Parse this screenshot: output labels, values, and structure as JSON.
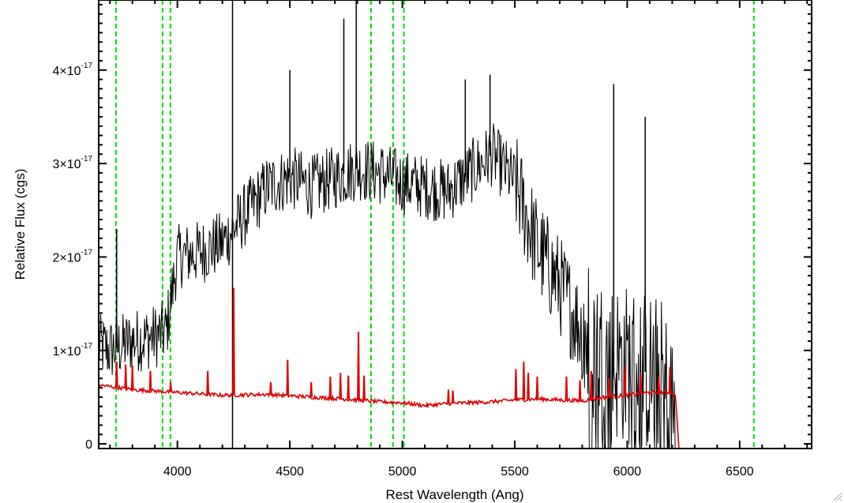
{
  "chart_data": {
    "type": "line",
    "title": "",
    "xlabel": "Rest Wavelength (Ang)",
    "ylabel": "Relative Flux (cgs)",
    "xlim": [
      3650,
      6820
    ],
    "ylim": [
      -5e-19,
      4.75e-17
    ],
    "x_ticks": [
      4000,
      4500,
      5000,
      5500,
      6000,
      6500
    ],
    "x_tick_labels": [
      "4000",
      "4500",
      "5000",
      "5500",
      "6000",
      "6500"
    ],
    "y_ticks": [
      0,
      1e-17,
      2e-17,
      3e-17,
      4e-17
    ],
    "y_tick_labels": [
      {
        "mantissa": "0",
        "exponent": ""
      },
      {
        "mantissa": "1×10",
        "exponent": "-17"
      },
      {
        "mantissa": "2×10",
        "exponent": "-17"
      },
      {
        "mantissa": "3×10",
        "exponent": "-17"
      },
      {
        "mantissa": "4×10",
        "exponent": "-17"
      }
    ],
    "reference_lines": {
      "color": "#00dd00",
      "style": "dashed",
      "x": [
        3727,
        3934,
        3969,
        4861,
        4959,
        5007,
        6563
      ]
    },
    "series": [
      {
        "color": "#000000",
        "style": "noisy spectrum",
        "envelope_x": [
          3650,
          3700,
          3800,
          3900,
          3950,
          4000,
          4100,
          4200,
          4300,
          4400,
          4500,
          4600,
          4700,
          4800,
          4900,
          5000,
          5100,
          5200,
          5300,
          5400,
          5500,
          5600,
          5700,
          5800,
          5900,
          6000,
          6100,
          6150,
          6200,
          6220
        ],
        "envelope_y": [
          1.05e-17,
          1e-17,
          1.1e-17,
          1.15e-17,
          1.2e-17,
          2e-17,
          2.05e-17,
          2.15e-17,
          2.45e-17,
          2.75e-17,
          2.85e-17,
          2.75e-17,
          2.85e-17,
          2.95e-17,
          2.9e-17,
          2.8e-17,
          2.75e-17,
          2.7e-17,
          2.9e-17,
          3.1e-17,
          2.8e-17,
          2.1e-17,
          1.7e-17,
          1.2e-17,
          9e-18,
          8.5e-18,
          7.5e-18,
          7e-18,
          4e-18,
          0.0
        ],
        "noise_amplitude": [
          3.5e-18,
          5.5e-18
        ],
        "spikes": [
          {
            "x": 4245,
            "y": 4.8e-17
          },
          {
            "x": 4245,
            "y": -5e-19
          },
          {
            "x": 4795,
            "y": 4.8e-17
          },
          {
            "x": 4740,
            "y": 4.55e-17
          },
          {
            "x": 4500,
            "y": 4e-17
          },
          {
            "x": 5940,
            "y": 3.85e-17
          },
          {
            "x": 6080,
            "y": 3.5e-17
          },
          {
            "x": 5280,
            "y": 3.9e-17
          },
          {
            "x": 5390,
            "y": 3.95e-17
          },
          {
            "x": 3730,
            "y": 2.3e-17
          }
        ]
      },
      {
        "color": "#dd0000",
        "style": "error spectrum",
        "x": [
          3650,
          3800,
          4000,
          4200,
          4400,
          4600,
          4800,
          4900,
          5000,
          5100,
          5200,
          5300,
          5400,
          5500,
          5600,
          5700,
          5800,
          5900,
          6000,
          6100,
          6200,
          6215,
          6230,
          6820
        ],
        "y": [
          6.3e-18,
          5.8e-18,
          5.5e-18,
          5.2e-18,
          5.3e-18,
          5e-18,
          4.7e-18,
          4.5e-18,
          4.4e-18,
          4.1e-18,
          4.3e-18,
          4.4e-18,
          4.5e-18,
          4.7e-18,
          4.8e-18,
          4.7e-18,
          4.6e-18,
          5e-18,
          5.2e-18,
          5.5e-18,
          5.5e-18,
          5e-18,
          -5e-19,
          -5e-19
        ],
        "spikes": [
          {
            "x": 3730,
            "y": 8.8e-18
          },
          {
            "x": 3770,
            "y": 8.5e-18
          },
          {
            "x": 3800,
            "y": 8.4e-18
          },
          {
            "x": 3880,
            "y": 7.8e-18
          },
          {
            "x": 3970,
            "y": 6.6e-18
          },
          {
            "x": 4135,
            "y": 7.8e-18
          },
          {
            "x": 4250,
            "y": 1.67e-17
          },
          {
            "x": 4415,
            "y": 6.6e-18
          },
          {
            "x": 4490,
            "y": 9e-18
          },
          {
            "x": 4595,
            "y": 6.6e-18
          },
          {
            "x": 4680,
            "y": 7.2e-18
          },
          {
            "x": 4725,
            "y": 7.6e-18
          },
          {
            "x": 4760,
            "y": 7.3e-18
          },
          {
            "x": 4805,
            "y": 1.2e-17
          },
          {
            "x": 4830,
            "y": 7.3e-18
          },
          {
            "x": 5205,
            "y": 5.8e-18
          },
          {
            "x": 5225,
            "y": 5.7e-18
          },
          {
            "x": 5505,
            "y": 8e-18
          },
          {
            "x": 5540,
            "y": 8.8e-18
          },
          {
            "x": 5560,
            "y": 7.6e-18
          },
          {
            "x": 5600,
            "y": 7.2e-18
          },
          {
            "x": 5730,
            "y": 7.2e-18
          },
          {
            "x": 5790,
            "y": 6.8e-18
          },
          {
            "x": 5840,
            "y": 7.8e-18
          },
          {
            "x": 5920,
            "y": 7e-18
          },
          {
            "x": 5990,
            "y": 8.3e-18
          },
          {
            "x": 6060,
            "y": 7.5e-18
          },
          {
            "x": 6140,
            "y": 7.2e-18
          },
          {
            "x": 6190,
            "y": 8.2e-18
          }
        ]
      }
    ],
    "grid": false,
    "legend": "none"
  }
}
